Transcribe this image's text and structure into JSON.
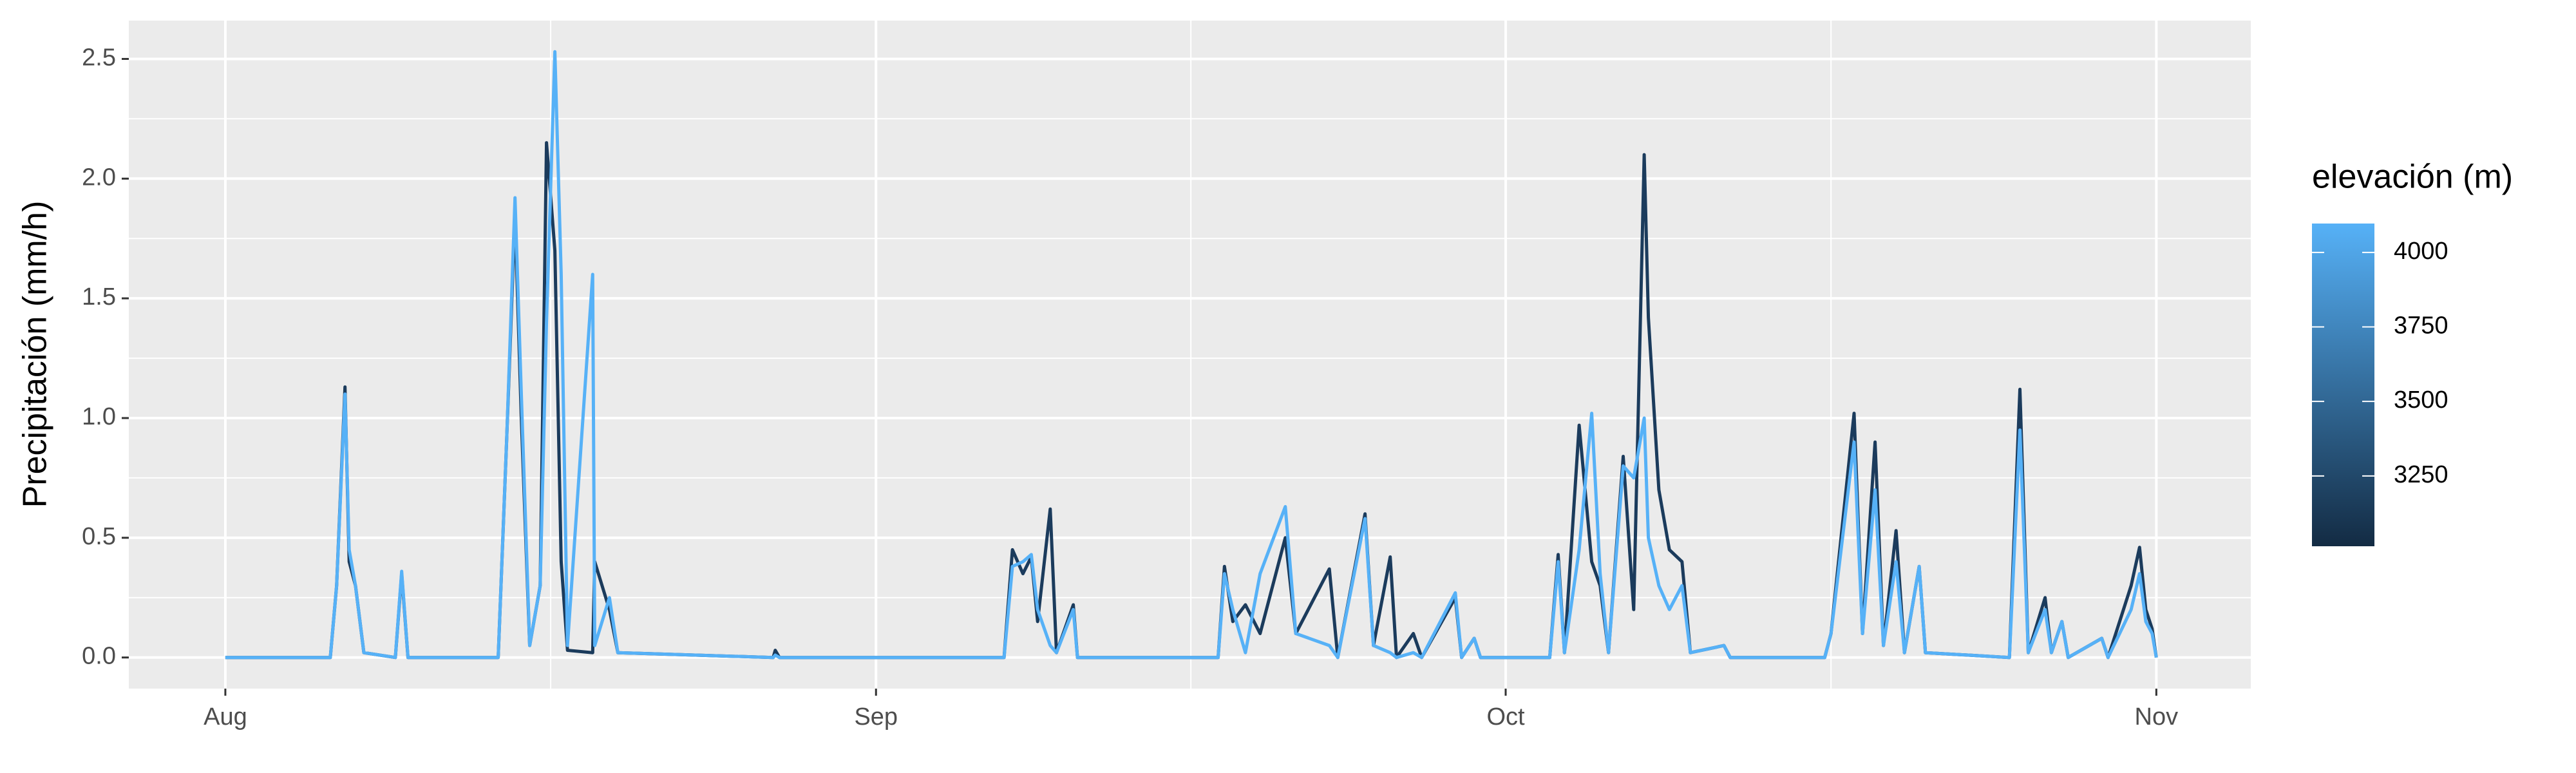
{
  "chart_data": {
    "type": "line",
    "ylabel": "Precipitación (mm/h)",
    "x": [
      0,
      5.0,
      5.3,
      5.7,
      5.9,
      6.2,
      6.6,
      8.1,
      8.4,
      8.7,
      13.0,
      13.4,
      13.8,
      14.1,
      14.5,
      15.0,
      15.3,
      15.7,
      16.0,
      16.3,
      17.5,
      17.6,
      18.3,
      18.7,
      26.1,
      26.2,
      26.4,
      37.1,
      37.5,
      38.0,
      38.4,
      38.7,
      39.3,
      39.6,
      40.4,
      40.6,
      47.3,
      47.6,
      48.0,
      48.6,
      49.3,
      50.5,
      51.0,
      52.6,
      53.0,
      54.3,
      54.7,
      55.5,
      55.8,
      56.6,
      57.0,
      58.6,
      58.9,
      59.5,
      59.8,
      63.1,
      63.5,
      63.8,
      64.5,
      65.1,
      65.5,
      65.9,
      66.6,
      67.1,
      67.6,
      67.8,
      68.3,
      68.8,
      69.4,
      69.8,
      71.4,
      71.7,
      76.2,
      76.5,
      77.6,
      78.0,
      78.6,
      79.0,
      79.6,
      80.0,
      80.7,
      81.0,
      85.0,
      85.5,
      85.9,
      86.7,
      87.0,
      87.5,
      87.8,
      89.4,
      89.7,
      90.8,
      91.2,
      91.5,
      91.8,
      92.0
    ],
    "series": [
      {
        "color": "#1b3b5c",
        "values": [
          0,
          0,
          0.3,
          1.13,
          0.4,
          0.3,
          0.02,
          0,
          0.35,
          0,
          0,
          0.9,
          1.85,
          1.0,
          0.05,
          0.3,
          2.15,
          1.7,
          0.4,
          0.03,
          0.02,
          0.4,
          0.2,
          0.02,
          0,
          0.03,
          0,
          0,
          0.45,
          0.35,
          0.42,
          0.15,
          0.62,
          0.02,
          0.22,
          0,
          0,
          0.38,
          0.15,
          0.22,
          0.1,
          0.5,
          0.1,
          0.37,
          0,
          0.6,
          0.05,
          0.42,
          0,
          0.1,
          0,
          0.25,
          0,
          0.08,
          0,
          0,
          0.43,
          0.02,
          0.97,
          0.4,
          0.3,
          0.02,
          0.84,
          0.2,
          2.1,
          1.42,
          0.7,
          0.45,
          0.4,
          0.02,
          0.05,
          0,
          0,
          0.1,
          1.02,
          0.1,
          0.9,
          0.05,
          0.53,
          0.02,
          0.38,
          0.02,
          0,
          1.12,
          0.02,
          0.25,
          0.02,
          0.15,
          0,
          0.08,
          0,
          0.3,
          0.46,
          0.2,
          0.12,
          0
        ]
      },
      {
        "color": "#56b1f7",
        "values": [
          0,
          0,
          0.3,
          1.1,
          0.45,
          0.3,
          0.02,
          0,
          0.36,
          0,
          0,
          0.9,
          1.92,
          1.1,
          0.05,
          0.3,
          1.4,
          2.53,
          1.6,
          0.05,
          1.6,
          0.05,
          0.25,
          0.02,
          0,
          0.01,
          0,
          0,
          0.38,
          0.4,
          0.43,
          0.2,
          0.05,
          0.02,
          0.2,
          0,
          0,
          0.35,
          0.2,
          0.02,
          0.35,
          0.63,
          0.1,
          0.05,
          0,
          0.58,
          0.05,
          0.02,
          0,
          0.02,
          0,
          0.27,
          0,
          0.08,
          0,
          0,
          0.4,
          0.02,
          0.45,
          1.02,
          0.35,
          0.02,
          0.8,
          0.75,
          1.0,
          0.5,
          0.3,
          0.2,
          0.3,
          0.02,
          0.05,
          0,
          0,
          0.1,
          0.9,
          0.1,
          0.7,
          0.05,
          0.4,
          0.02,
          0.38,
          0.02,
          0,
          0.95,
          0.02,
          0.2,
          0.02,
          0.15,
          0,
          0.08,
          0,
          0.2,
          0.35,
          0.15,
          0.1,
          0
        ]
      }
    ],
    "xlim": [
      -4.6,
      96.5
    ],
    "xticks": [
      {
        "value": 0,
        "label": "Aug"
      },
      {
        "value": 31,
        "label": "Sep"
      },
      {
        "value": 61,
        "label": "Oct"
      },
      {
        "value": 92,
        "label": "Nov"
      }
    ],
    "ylim": [
      -0.13,
      2.66
    ],
    "yticks": [
      {
        "value": 0,
        "label": "0.0"
      },
      0.5,
      {
        "value": 1,
        "label": "1.0"
      },
      1.5,
      {
        "value": 2,
        "label": "2.0"
      },
      2.5
    ],
    "grid": true,
    "legend": {
      "title": "elevación (m)",
      "lim": [
        3014,
        4097
      ],
      "ticks": [
        3250,
        3500,
        3750,
        4000
      ],
      "colors": [
        "#132b43",
        "#56b1f7"
      ]
    }
  }
}
